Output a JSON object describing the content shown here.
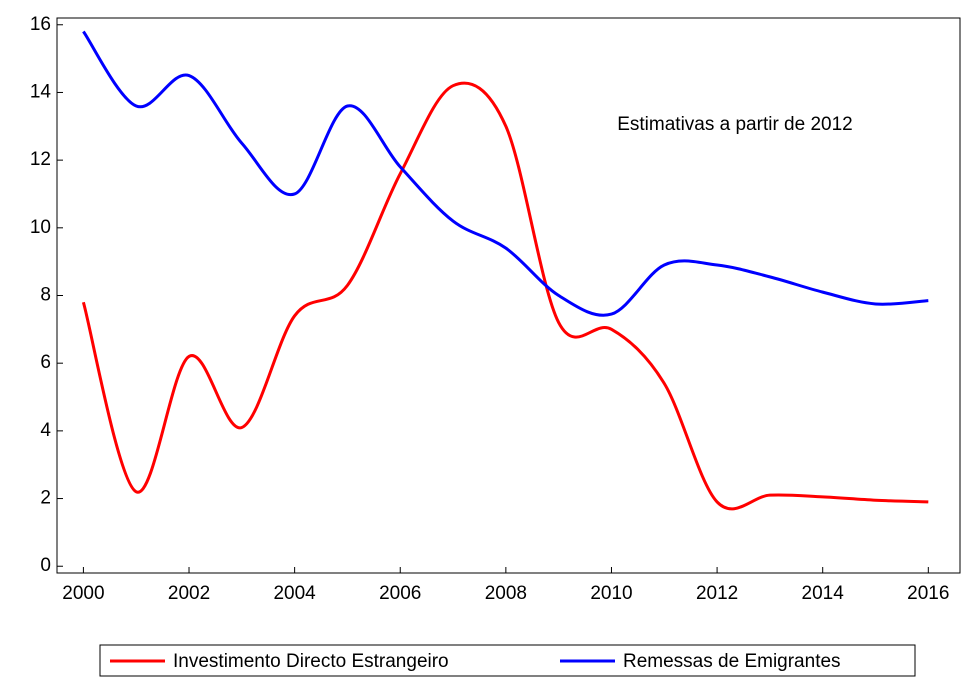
{
  "chart_data": {
    "type": "line",
    "annotation": "Estimativas a partir de 2012",
    "x": [
      2000,
      2001,
      2002,
      2003,
      2004,
      2005,
      2006,
      2007,
      2008,
      2009,
      2010,
      2011,
      2012,
      2013,
      2014,
      2015,
      2016
    ],
    "series": [
      {
        "name": "Investimento Directo Estrangeiro",
        "color": "#ff0000",
        "values": [
          7.8,
          2.2,
          6.2,
          4.1,
          7.4,
          8.3,
          11.6,
          14.2,
          13.0,
          7.2,
          7.0,
          5.4,
          1.9,
          2.1,
          2.05,
          1.95,
          1.9
        ]
      },
      {
        "name": "Remessas de Emigrantes",
        "color": "#0000ff",
        "values": [
          15.8,
          13.6,
          14.5,
          12.5,
          11.0,
          13.6,
          11.8,
          10.2,
          9.4,
          8.0,
          7.45,
          8.9,
          8.9,
          8.55,
          8.1,
          7.75,
          7.85
        ]
      }
    ],
    "xlim": [
      1999.5,
      2016.6
    ],
    "xticks": [
      2000,
      2002,
      2004,
      2006,
      2008,
      2010,
      2012,
      2014,
      2016
    ],
    "ylim": [
      -0.2,
      16.2
    ],
    "yticks": [
      0,
      2,
      4,
      6,
      8,
      10,
      12,
      14,
      16
    ],
    "legend": "bottom"
  }
}
